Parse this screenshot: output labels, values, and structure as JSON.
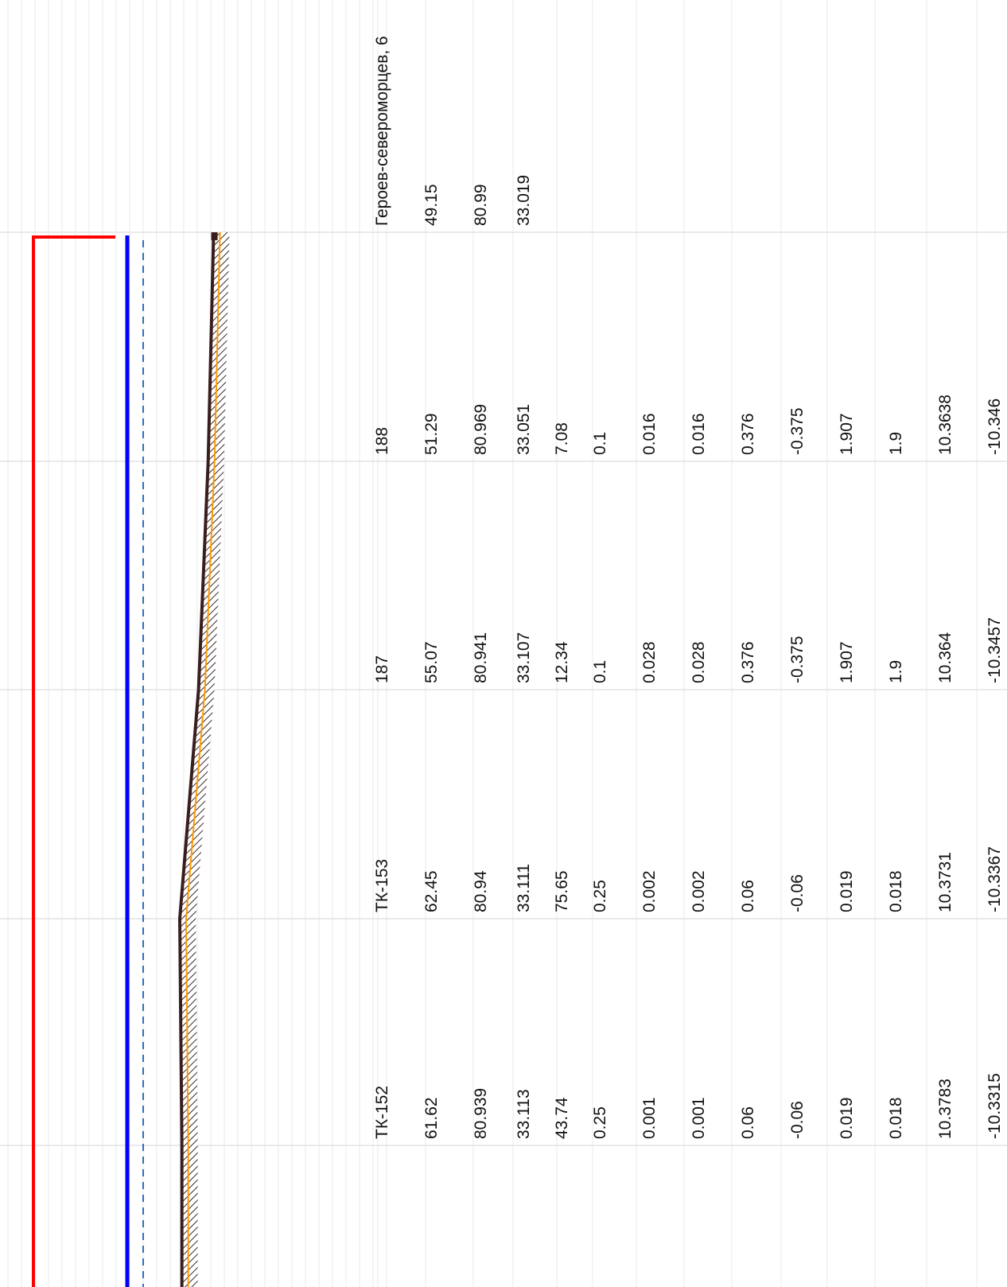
{
  "chart_data": {
    "type": "line",
    "orientation": "rotated-90",
    "grid": true,
    "nodes": [
      {
        "label": "ТК-152",
        "values": [
          "61.62",
          "80.939",
          "33.113",
          "43.74",
          "0.25",
          "0.001",
          "0.001",
          "0.06",
          "-0.06",
          "0.019",
          "0.018",
          "10.3783",
          "-10.3315"
        ]
      },
      {
        "label": "ТК-153",
        "values": [
          "62.45",
          "80.94",
          "33.111",
          "75.65",
          "0.25",
          "0.002",
          "0.002",
          "0.06",
          "-0.06",
          "0.019",
          "0.018",
          "10.3731",
          "-10.3367"
        ]
      },
      {
        "label": "187",
        "values": [
          "55.07",
          "80.941",
          "33.107",
          "12.34",
          "0.1",
          "0.028",
          "0.028",
          "0.376",
          "-0.375",
          "1.907",
          "1.9",
          "10.364",
          "-10.3457"
        ]
      },
      {
        "label": "188",
        "values": [
          "51.29",
          "80.969",
          "33.051",
          "7.08",
          "0.1",
          "0.016",
          "0.016",
          "0.376",
          "-0.375",
          "1.907",
          "1.9",
          "10.3638",
          "-10.346"
        ]
      },
      {
        "label": "Героев-североморцев, 6",
        "values": [
          "49.15",
          "80.99",
          "33.019"
        ]
      }
    ],
    "series": [
      {
        "role": "supply-pressure-line",
        "color": "#ff0000",
        "values": [
          80.939,
          80.94,
          80.941,
          80.969,
          80.99
        ]
      },
      {
        "role": "return-pressure-line",
        "color": "#0000ff",
        "values": [
          33.113,
          33.111,
          33.107,
          33.051,
          33.019
        ]
      },
      {
        "role": "static-pressure-line",
        "color": "#2f6fbf",
        "style": "dashed"
      },
      {
        "role": "ground-profile",
        "color": "#3a1e1e",
        "values": [
          61.62,
          62.45,
          55.07,
          51.29,
          49.15
        ]
      },
      {
        "role": "pipe-profile",
        "color": "#ff9900"
      }
    ]
  }
}
